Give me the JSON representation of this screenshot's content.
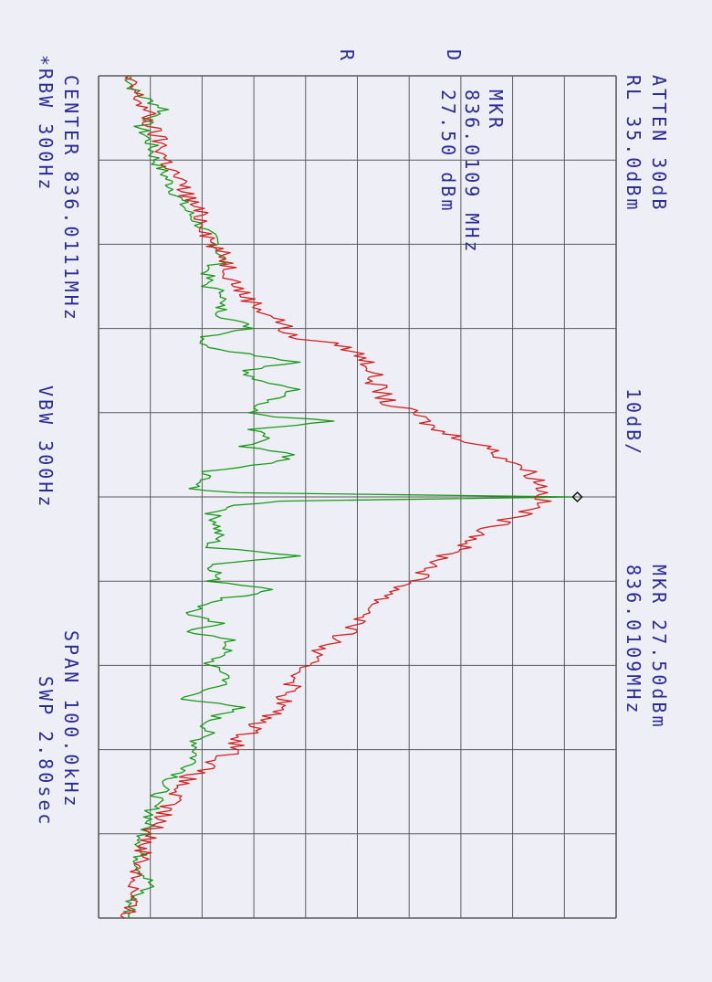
{
  "header": {
    "atten": "ATTEN 30dB",
    "ref_level": "RL 35.0dBm",
    "scale": "10dB/",
    "marker_readout": "MKR 27.50dBm",
    "marker_freq_readout": "836.0109MHz"
  },
  "marker_box": {
    "label": "MKR",
    "freq": "836.0109 MHz",
    "amplitude": "27.50 dBm"
  },
  "trace_tags": {
    "d": "D",
    "r": "R"
  },
  "footer": {
    "center": "CENTER 836.0111MHz",
    "rbw": "∗RBW 300Hz",
    "vbw": "VBW 300Hz",
    "span": "SPAN 100.0kHz",
    "sweep": "SWP 2.80sec"
  },
  "chart_data": {
    "type": "line",
    "x_unit": "kHz offset from center",
    "xlim": [
      -50,
      50
    ],
    "ylim": [
      -65,
      35
    ],
    "y_unit": "dBm",
    "ref_level": 35,
    "scale_per_div": 10,
    "marker": {
      "x": 0,
      "y": 27.5
    },
    "grid": true,
    "colors": {
      "grid": "#5a5a5a",
      "trace_d": "#1a9a1a",
      "trace_r": "#d42020",
      "text": "#2a2a9a"
    },
    "series": [
      {
        "name": "D",
        "x": [
          -50,
          -48,
          -46,
          -44,
          -42,
          -40,
          -38,
          -36,
          -34,
          -32,
          -30,
          -28,
          -27,
          -26,
          -25,
          -24,
          -23,
          -22,
          -21.5,
          -21,
          -20,
          -19,
          -18,
          -17,
          -16,
          -15,
          -14,
          -13,
          -12,
          -11,
          -10,
          -9.5,
          -9,
          -8,
          -7,
          -6,
          -5,
          -4,
          -3,
          -2,
          -1,
          -0.5,
          0,
          0.5,
          1,
          2,
          3,
          4,
          5,
          6,
          7,
          8,
          9,
          10,
          11,
          12,
          13,
          14,
          15,
          16,
          17,
          18,
          19,
          20,
          21,
          22,
          23,
          24,
          25,
          26,
          27,
          28,
          29,
          30,
          32,
          34,
          36,
          38,
          40,
          42,
          44,
          46,
          48,
          50
        ],
        "y": [
          -59,
          -58,
          -52,
          -57,
          -55,
          -54,
          -52,
          -50,
          -48,
          -45,
          -42,
          -41,
          -44,
          -44,
          -44,
          -40,
          -42,
          -41,
          -41,
          -39,
          -35,
          -44,
          -45,
          -36,
          -26,
          -37,
          -36,
          -27,
          -28,
          -34,
          -36,
          -30,
          -20,
          -36,
          -32,
          -38,
          -27,
          -32,
          -45,
          -44,
          -48,
          -38,
          27,
          -30,
          -38,
          -43,
          -42,
          -42,
          -42,
          -44,
          -25,
          -43,
          -42,
          -43,
          -30,
          -40,
          -45,
          -48,
          -42,
          -47,
          -40,
          -40,
          -42,
          -44,
          -40,
          -40,
          -45,
          -48,
          -38,
          -42,
          -44,
          -44,
          -46,
          -46,
          -47,
          -52,
          -54,
          -55,
          -56,
          -57,
          -57,
          -55,
          -59,
          -59
        ]
      },
      {
        "name": "R",
        "x": [
          -50,
          -48,
          -46,
          -44,
          -42,
          -40,
          -38,
          -36,
          -34,
          -32,
          -30,
          -28,
          -26,
          -24,
          -22,
          -21,
          -20,
          -19,
          -18,
          -17,
          -16,
          -15,
          -14,
          -13,
          -12,
          -11,
          -10,
          -9,
          -8,
          -7,
          -6,
          -5,
          -4,
          -3,
          -2,
          -1,
          0,
          1,
          2,
          3,
          4,
          5,
          6,
          7,
          8,
          9,
          10,
          11,
          12,
          13,
          14,
          15,
          16,
          17,
          18,
          19,
          20,
          21,
          22,
          23,
          24,
          25,
          26,
          27,
          28,
          29,
          30,
          31,
          32,
          33,
          34,
          36,
          38,
          40,
          42,
          44,
          46,
          48,
          50
        ],
        "y": [
          -60,
          -58,
          -56,
          -55,
          -53,
          -52,
          -50,
          -48,
          -46,
          -44,
          -43,
          -40,
          -39,
          -37,
          -33,
          -30,
          -29,
          -28,
          -18,
          -15,
          -13,
          -12,
          -12,
          -11,
          -10,
          -9,
          -4,
          -2,
          0,
          5,
          10,
          12,
          16,
          18,
          20,
          21,
          21,
          20,
          17,
          13,
          10,
          8,
          5,
          2,
          0,
          -2,
          -4,
          -7,
          -10,
          -12,
          -13,
          -15,
          -17,
          -19,
          -22,
          -24,
          -25,
          -26,
          -27,
          -28,
          -29,
          -30,
          -32,
          -34,
          -36,
          -38,
          -38,
          -41,
          -44,
          -47,
          -49,
          -51,
          -53,
          -55,
          -56,
          -57,
          -58,
          -59,
          -60
        ]
      }
    ]
  }
}
